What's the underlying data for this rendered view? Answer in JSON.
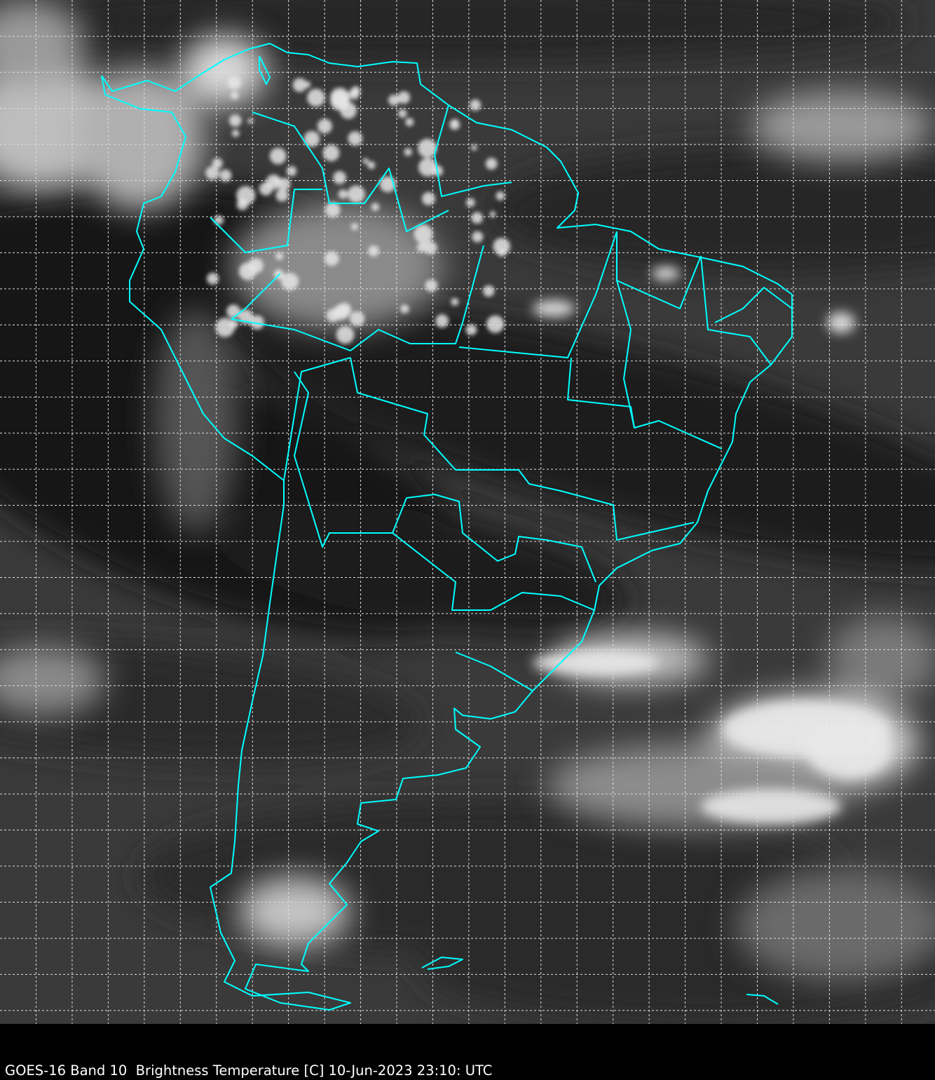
{
  "caption": "GOES-16 Band 10  Brightness Temperature [C] 10-Jun-2023 23:10: UTC",
  "colors": {
    "coastline": "#00ffff",
    "grid": "#ffffff",
    "background": "#000000"
  },
  "imagery": {
    "satellite": "GOES-16",
    "band": 10,
    "product": "Brightness Temperature",
    "units": "C",
    "colormap": "grayscale",
    "region": "South America"
  },
  "grid": {
    "style": "dashed"
  }
}
